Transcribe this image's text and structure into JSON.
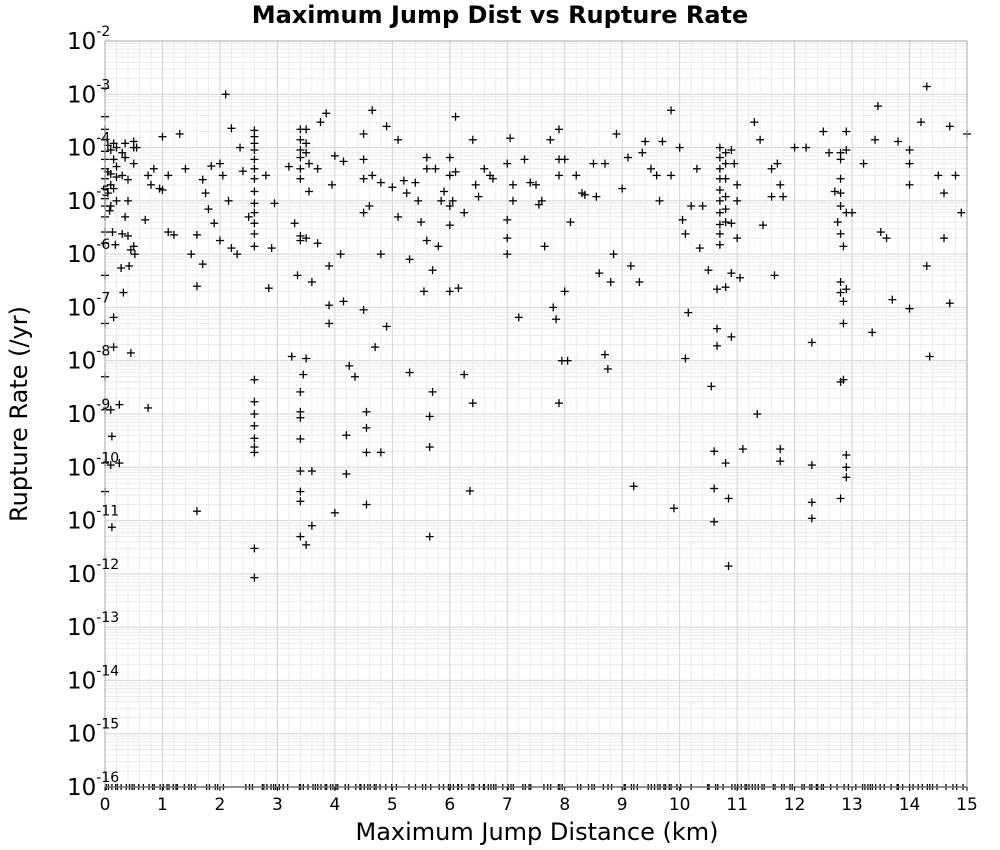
{
  "chart_data": {
    "type": "scatter",
    "title": "Maximum Jump Dist vs Rupture Rate",
    "xlabel": "Maximum Jump Distance (km)",
    "ylabel": "Rupture Rate (/yr)",
    "xlim": [
      0,
      15
    ],
    "ylim": [
      1e-16,
      0.01
    ],
    "yscale": "log",
    "grid": true,
    "legend": "none",
    "marker": "plus",
    "marker_color": "#000000",
    "x_ticks": [
      "0",
      "1",
      "2",
      "3",
      "4",
      "5",
      "6",
      "7",
      "8",
      "9",
      "10",
      "11",
      "12",
      "13",
      "14",
      "15"
    ],
    "y_ticks": [
      {
        "base": "10",
        "exp": "-2"
      },
      {
        "base": "10",
        "exp": "-3"
      },
      {
        "base": "10",
        "exp": "-4"
      },
      {
        "base": "10",
        "exp": "-5"
      },
      {
        "base": "10",
        "exp": "-6"
      },
      {
        "base": "10",
        "exp": "-7"
      },
      {
        "base": "10",
        "exp": "-8"
      },
      {
        "base": "10",
        "exp": "-9"
      },
      {
        "base": "10",
        "exp": "-10"
      },
      {
        "base": "10",
        "exp": "-11"
      },
      {
        "base": "10",
        "exp": "-12"
      },
      {
        "base": "10",
        "exp": "-13"
      },
      {
        "base": "10",
        "exp": "-14"
      },
      {
        "base": "10",
        "exp": "-15"
      },
      {
        "base": "10",
        "exp": "-16"
      }
    ],
    "points": [
      [
        0.0,
        0.0013
      ],
      [
        0.0,
        0.00038
      ],
      [
        0.0,
        0.00022
      ],
      [
        0.0,
        0.00014
      ],
      [
        0.0,
        8.5e-05
      ],
      [
        0.0,
        6e-05
      ],
      [
        0.0,
        4e-05
      ],
      [
        0.0,
        2.6e-05
      ],
      [
        0.0,
        1.7e-05
      ],
      [
        0.0,
        1.1e-05
      ],
      [
        0.0,
        8e-06
      ],
      [
        0.0,
        5e-06
      ],
      [
        0.0,
        2.6e-06
      ],
      [
        0.0,
        1.6e-06
      ],
      [
        0.0,
        4e-07
      ],
      [
        0.0,
        5e-08
      ],
      [
        0.0,
        5e-09
      ],
      [
        0.0,
        1.2e-09
      ],
      [
        0.0,
        1.2e-10
      ],
      [
        0.0,
        3.5e-11
      ],
      [
        0.05,
        0.00011
      ],
      [
        0.05,
        3.5e-05
      ],
      [
        0.05,
        1.4e-05
      ],
      [
        0.08,
        6.5e-06
      ],
      [
        0.1,
        9e-05
      ],
      [
        0.1,
        3.2e-05
      ],
      [
        0.1,
        2e-05
      ],
      [
        0.1,
        8e-06
      ],
      [
        0.1,
        1.2e-09
      ],
      [
        0.1,
        1.1e-10
      ],
      [
        0.12,
        3.8e-10
      ],
      [
        0.12,
        7.5e-12
      ],
      [
        0.13,
        2.6e-06
      ],
      [
        0.15,
        0.00012
      ],
      [
        0.15,
        6e-05
      ],
      [
        0.15,
        1.7e-05
      ],
      [
        0.15,
        6.5e-08
      ],
      [
        0.15,
        1.8e-08
      ],
      [
        0.18,
        1.5e-06
      ],
      [
        0.2,
        0.0001
      ],
      [
        0.2,
        4.4e-05
      ],
      [
        0.2,
        2.8e-05
      ],
      [
        0.2,
        1e-05
      ],
      [
        0.25,
        1.2e-10
      ],
      [
        0.25,
        1.5e-09
      ],
      [
        0.28,
        5.5e-07
      ],
      [
        0.3,
        2.4e-06
      ],
      [
        0.3,
        8e-05
      ],
      [
        0.3,
        3e-05
      ],
      [
        0.32,
        1.9e-07
      ],
      [
        0.35,
        0.00012
      ],
      [
        0.35,
        6.5e-05
      ],
      [
        0.35,
        5e-06
      ],
      [
        0.4,
        2.5e-05
      ],
      [
        0.4,
        1e-05
      ],
      [
        0.4,
        2.2e-06
      ],
      [
        0.42,
        6e-07
      ],
      [
        0.45,
        1.2e-06
      ],
      [
        0.45,
        1.4e-08
      ],
      [
        0.5,
        0.00013
      ],
      [
        0.5,
        0.0001
      ],
      [
        0.5,
        5e-05
      ],
      [
        0.5,
        1.4e-06
      ],
      [
        0.52,
        1e-06
      ],
      [
        0.55,
        0.0001
      ],
      [
        0.7,
        4.4e-06
      ],
      [
        0.75,
        1.3e-09
      ],
      [
        0.75,
        3e-05
      ],
      [
        0.8,
        2e-05
      ],
      [
        0.85,
        4e-05
      ],
      [
        0.95,
        1.7e-05
      ],
      [
        1.0,
        1.6e-05
      ],
      [
        1.0,
        0.00016
      ],
      [
        1.1,
        3e-05
      ],
      [
        1.1,
        2.6e-06
      ],
      [
        1.2,
        2.3e-06
      ],
      [
        1.3,
        0.00018
      ],
      [
        1.4,
        4e-05
      ],
      [
        1.5,
        1e-06
      ],
      [
        1.6,
        2.5e-07
      ],
      [
        1.6,
        2.3e-06
      ],
      [
        1.6,
        1.5e-11
      ],
      [
        1.7,
        6.5e-07
      ],
      [
        1.7,
        2.5e-05
      ],
      [
        1.75,
        1.4e-05
      ],
      [
        1.8,
        7e-06
      ],
      [
        1.85,
        4.5e-05
      ],
      [
        1.9,
        3.8e-06
      ],
      [
        2.0,
        5e-05
      ],
      [
        2.0,
        1.8e-06
      ],
      [
        2.05,
        3e-05
      ],
      [
        2.1,
        0.001
      ],
      [
        2.15,
        1e-05
      ],
      [
        2.2,
        0.00023
      ],
      [
        2.2,
        1.3e-06
      ],
      [
        2.3,
        1e-06
      ],
      [
        2.35,
        0.0001
      ],
      [
        2.4,
        3.6e-05
      ],
      [
        2.5,
        5e-06
      ],
      [
        2.6,
        0.00021
      ],
      [
        2.6,
        0.00016
      ],
      [
        2.6,
        0.00012
      ],
      [
        2.6,
        9e-05
      ],
      [
        2.6,
        6e-05
      ],
      [
        2.6,
        4e-05
      ],
      [
        2.6,
        2.6e-05
      ],
      [
        2.6,
        1.5e-05
      ],
      [
        2.6,
        9e-06
      ],
      [
        2.6,
        6e-06
      ],
      [
        2.6,
        3.8e-06
      ],
      [
        2.6,
        2.4e-06
      ],
      [
        2.6,
        1.4e-06
      ],
      [
        2.6,
        4.4e-09
      ],
      [
        2.6,
        1.7e-09
      ],
      [
        2.6,
        1e-09
      ],
      [
        2.6,
        6e-10
      ],
      [
        2.6,
        3.5e-10
      ],
      [
        2.6,
        2.4e-10
      ],
      [
        2.6,
        1.9e-10
      ],
      [
        2.6,
        3e-12
      ],
      [
        2.6,
        8.5e-13
      ],
      [
        2.8,
        3e-05
      ],
      [
        2.85,
        2.3e-07
      ],
      [
        2.9,
        1.3e-06
      ],
      [
        2.95,
        9e-06
      ],
      [
        3.2,
        4.4e-05
      ],
      [
        3.25,
        1.2e-08
      ],
      [
        3.3,
        3.8e-06
      ],
      [
        3.35,
        4e-07
      ],
      [
        3.4,
        0.00022
      ],
      [
        3.4,
        0.00014
      ],
      [
        3.4,
        9e-05
      ],
      [
        3.4,
        6.5e-05
      ],
      [
        3.4,
        4e-05
      ],
      [
        3.4,
        2.6e-05
      ],
      [
        3.4,
        2.2e-06
      ],
      [
        3.4,
        1.8e-06
      ],
      [
        3.4,
        2.6e-09
      ],
      [
        3.4,
        1.1e-09
      ],
      [
        3.4,
        8.5e-10
      ],
      [
        3.4,
        3.4e-10
      ],
      [
        3.4,
        8.5e-11
      ],
      [
        3.4,
        3.5e-11
      ],
      [
        3.4,
        2.3e-11
      ],
      [
        3.4,
        5e-12
      ],
      [
        3.45,
        5.5e-09
      ],
      [
        3.5,
        0.00022
      ],
      [
        3.5,
        0.00012
      ],
      [
        3.5,
        8e-05
      ],
      [
        3.5,
        2e-06
      ],
      [
        3.5,
        1.1e-08
      ],
      [
        3.5,
        3.5e-12
      ],
      [
        3.55,
        5e-05
      ],
      [
        3.55,
        1.5e-05
      ],
      [
        3.6,
        8e-12
      ],
      [
        3.6,
        3e-07
      ],
      [
        3.6,
        8.5e-11
      ],
      [
        3.7,
        4e-05
      ],
      [
        3.7,
        1.6e-06
      ],
      [
        3.75,
        0.0003
      ],
      [
        3.85,
        0.00044
      ],
      [
        3.9,
        6e-07
      ],
      [
        3.9,
        1.1e-07
      ],
      [
        3.9,
        5e-08
      ],
      [
        3.95,
        2e-05
      ],
      [
        4.0,
        7e-05
      ],
      [
        4.0,
        1.4e-11
      ],
      [
        4.1,
        1e-06
      ],
      [
        4.15,
        5.5e-05
      ],
      [
        4.15,
        1.3e-07
      ],
      [
        4.2,
        4e-10
      ],
      [
        4.2,
        7.5e-11
      ],
      [
        4.25,
        8e-09
      ],
      [
        4.35,
        5e-09
      ],
      [
        4.5,
        0.00018
      ],
      [
        4.5,
        6e-05
      ],
      [
        4.5,
        2.6e-05
      ],
      [
        4.5,
        6e-06
      ],
      [
        4.5,
        9e-08
      ],
      [
        4.55,
        1.1e-09
      ],
      [
        4.55,
        5.5e-10
      ],
      [
        4.55,
        1.9e-10
      ],
      [
        4.55,
        2e-11
      ],
      [
        4.6,
        8e-06
      ],
      [
        4.65,
        0.0005
      ],
      [
        4.65,
        3e-05
      ],
      [
        4.7,
        1.8e-08
      ],
      [
        4.8,
        2.2e-05
      ],
      [
        4.8,
        1e-06
      ],
      [
        4.8,
        1.9e-10
      ],
      [
        4.9,
        0.00025
      ],
      [
        4.9,
        4.4e-08
      ],
      [
        5.0,
        1.8e-05
      ],
      [
        5.1,
        0.00014
      ],
      [
        5.1,
        5e-06
      ],
      [
        5.2,
        2.4e-05
      ],
      [
        5.25,
        1.4e-05
      ],
      [
        5.3,
        8e-07
      ],
      [
        5.3,
        6e-09
      ],
      [
        5.4,
        2.2e-05
      ],
      [
        5.45,
        1e-05
      ],
      [
        5.5,
        4e-06
      ],
      [
        5.55,
        2e-07
      ],
      [
        5.6,
        6.5e-05
      ],
      [
        5.6,
        4e-05
      ],
      [
        5.6,
        1.8e-06
      ],
      [
        5.65,
        9e-10
      ],
      [
        5.65,
        2.4e-10
      ],
      [
        5.65,
        5e-12
      ],
      [
        5.7,
        5e-07
      ],
      [
        5.7,
        2.6e-09
      ],
      [
        5.75,
        4e-05
      ],
      [
        5.8,
        1.4e-06
      ],
      [
        5.85,
        1e-05
      ],
      [
        5.9,
        1.5e-05
      ],
      [
        6.0,
        6.5e-05
      ],
      [
        6.0,
        3e-05
      ],
      [
        6.0,
        8e-06
      ],
      [
        6.0,
        3.5e-06
      ],
      [
        6.0,
        2e-07
      ],
      [
        6.05,
        1e-05
      ],
      [
        6.1,
        0.00038
      ],
      [
        6.1,
        3.5e-05
      ],
      [
        6.15,
        2.3e-07
      ],
      [
        6.25,
        6e-06
      ],
      [
        6.25,
        5.5e-09
      ],
      [
        6.35,
        3.6e-11
      ],
      [
        6.4,
        0.00014
      ],
      [
        6.4,
        1.6e-09
      ],
      [
        6.45,
        2e-05
      ],
      [
        6.5,
        1.2e-05
      ],
      [
        6.6,
        4e-05
      ],
      [
        6.7,
        3e-05
      ],
      [
        6.75,
        2.6e-05
      ],
      [
        7.0,
        5e-05
      ],
      [
        7.0,
        4.4e-06
      ],
      [
        7.0,
        2e-06
      ],
      [
        7.0,
        1e-06
      ],
      [
        7.05,
        0.00015
      ],
      [
        7.1,
        2e-05
      ],
      [
        7.1,
        1e-05
      ],
      [
        7.2,
        6.5e-08
      ],
      [
        7.3,
        6e-05
      ],
      [
        7.4,
        2.2e-05
      ],
      [
        7.5,
        2e-05
      ],
      [
        7.55,
        8.5e-06
      ],
      [
        7.6,
        1e-05
      ],
      [
        7.65,
        1.4e-06
      ],
      [
        7.75,
        0.00014
      ],
      [
        7.8,
        1e-07
      ],
      [
        7.85,
        6e-08
      ],
      [
        7.9,
        0.00022
      ],
      [
        7.9,
        6e-05
      ],
      [
        7.9,
        3e-05
      ],
      [
        7.9,
        1.6e-09
      ],
      [
        7.95,
        1e-08
      ],
      [
        8.0,
        6e-05
      ],
      [
        8.0,
        2e-07
      ],
      [
        8.05,
        1e-08
      ],
      [
        8.1,
        4e-06
      ],
      [
        8.2,
        3e-05
      ],
      [
        8.3,
        1.4e-05
      ],
      [
        8.35,
        1.3e-05
      ],
      [
        8.5,
        5e-05
      ],
      [
        8.55,
        1.2e-05
      ],
      [
        8.6,
        4.4e-07
      ],
      [
        8.7,
        5e-05
      ],
      [
        8.7,
        1.3e-08
      ],
      [
        8.75,
        7e-09
      ],
      [
        8.8,
        3e-07
      ],
      [
        8.85,
        1e-06
      ],
      [
        8.9,
        0.00018
      ],
      [
        9.0,
        1.7e-05
      ],
      [
        9.1,
        6.5e-05
      ],
      [
        9.15,
        6e-07
      ],
      [
        9.2,
        4.4e-11
      ],
      [
        9.3,
        3e-07
      ],
      [
        9.35,
        8e-05
      ],
      [
        9.4,
        0.00013
      ],
      [
        9.5,
        4e-05
      ],
      [
        9.6,
        3e-05
      ],
      [
        9.65,
        1e-05
      ],
      [
        9.7,
        0.00013
      ],
      [
        9.85,
        0.0005
      ],
      [
        9.85,
        3e-05
      ],
      [
        9.9,
        1.7e-11
      ],
      [
        10.0,
        0.0001
      ],
      [
        10.05,
        4.4e-06
      ],
      [
        10.1,
        2.4e-06
      ],
      [
        10.1,
        1.1e-08
      ],
      [
        10.15,
        8e-08
      ],
      [
        10.2,
        8e-06
      ],
      [
        10.3,
        4e-05
      ],
      [
        10.35,
        1.3e-06
      ],
      [
        10.4,
        8e-06
      ],
      [
        10.5,
        5e-07
      ],
      [
        10.55,
        3.3e-09
      ],
      [
        10.6,
        2e-10
      ],
      [
        10.6,
        4e-11
      ],
      [
        10.6,
        9.5e-12
      ],
      [
        10.65,
        2.2e-07
      ],
      [
        10.65,
        4e-08
      ],
      [
        10.65,
        1.9e-08
      ],
      [
        10.7,
        0.0001
      ],
      [
        10.7,
        6.5e-05
      ],
      [
        10.7,
        4e-05
      ],
      [
        10.7,
        2.6e-05
      ],
      [
        10.7,
        1.6e-05
      ],
      [
        10.7,
        1e-05
      ],
      [
        10.7,
        6e-06
      ],
      [
        10.7,
        3.6e-06
      ],
      [
        10.7,
        2.4e-06
      ],
      [
        10.7,
        1.5e-06
      ],
      [
        10.8,
        8e-05
      ],
      [
        10.8,
        5e-05
      ],
      [
        10.8,
        2.6e-05
      ],
      [
        10.8,
        1.2e-05
      ],
      [
        10.8,
        7e-06
      ],
      [
        10.8,
        4e-06
      ],
      [
        10.8,
        2.4e-07
      ],
      [
        10.8,
        1.2e-10
      ],
      [
        10.85,
        2.6e-11
      ],
      [
        10.85,
        1.4e-12
      ],
      [
        10.9,
        9e-05
      ],
      [
        10.9,
        3.8e-06
      ],
      [
        10.9,
        4.4e-07
      ],
      [
        10.9,
        2.8e-08
      ],
      [
        10.95,
        5e-05
      ],
      [
        11.0,
        2e-05
      ],
      [
        11.0,
        1e-05
      ],
      [
        11.0,
        2e-06
      ],
      [
        11.05,
        3.6e-07
      ],
      [
        11.1,
        2.2e-10
      ],
      [
        11.3,
        0.0003
      ],
      [
        11.35,
        1e-09
      ],
      [
        11.4,
        0.00014
      ],
      [
        11.45,
        3.5e-06
      ],
      [
        11.6,
        1.2e-05
      ],
      [
        11.6,
        4e-05
      ],
      [
        11.65,
        4e-07
      ],
      [
        11.7,
        5e-05
      ],
      [
        11.75,
        2e-05
      ],
      [
        11.8,
        1.2e-05
      ],
      [
        11.75,
        2.2e-10
      ],
      [
        11.75,
        1.3e-10
      ],
      [
        12.0,
        0.0001
      ],
      [
        12.2,
        0.0001
      ],
      [
        12.3,
        2.2e-08
      ],
      [
        12.3,
        1.1e-10
      ],
      [
        12.3,
        2.2e-11
      ],
      [
        12.3,
        1.1e-11
      ],
      [
        12.5,
        0.0002
      ],
      [
        12.6,
        8e-05
      ],
      [
        12.7,
        1.5e-05
      ],
      [
        12.75,
        4e-06
      ],
      [
        12.8,
        8e-05
      ],
      [
        12.8,
        6e-05
      ],
      [
        12.8,
        2.6e-05
      ],
      [
        12.8,
        1.4e-05
      ],
      [
        12.8,
        8e-06
      ],
      [
        12.8,
        2.4e-06
      ],
      [
        12.8,
        3e-07
      ],
      [
        12.8,
        1.9e-07
      ],
      [
        12.8,
        4e-09
      ],
      [
        12.8,
        2.6e-11
      ],
      [
        12.85,
        1.4e-06
      ],
      [
        12.85,
        1.3e-07
      ],
      [
        12.85,
        5e-08
      ],
      [
        12.85,
        4.4e-09
      ],
      [
        12.9,
        0.0002
      ],
      [
        12.9,
        9e-05
      ],
      [
        12.9,
        6e-06
      ],
      [
        12.9,
        2.2e-07
      ],
      [
        12.9,
        1.7e-10
      ],
      [
        12.9,
        1e-10
      ],
      [
        12.9,
        6.5e-11
      ],
      [
        13.0,
        6e-06
      ],
      [
        13.2,
        5e-05
      ],
      [
        13.35,
        3.4e-08
      ],
      [
        13.4,
        0.00014
      ],
      [
        13.45,
        0.0006
      ],
      [
        13.5,
        2.6e-06
      ],
      [
        13.6,
        2e-06
      ],
      [
        13.7,
        1.4e-07
      ],
      [
        13.8,
        0.00013
      ],
      [
        14.0,
        9e-05
      ],
      [
        14.0,
        5e-05
      ],
      [
        14.0,
        2e-05
      ],
      [
        14.0,
        9.5e-08
      ],
      [
        14.2,
        0.0003
      ],
      [
        14.3,
        0.0014
      ],
      [
        14.3,
        6e-07
      ],
      [
        14.35,
        1.2e-08
      ],
      [
        14.5,
        3e-05
      ],
      [
        14.6,
        1.4e-05
      ],
      [
        14.6,
        2e-06
      ],
      [
        14.7,
        1.2e-07
      ],
      [
        14.7,
        0.00025
      ],
      [
        14.8,
        3e-05
      ],
      [
        14.9,
        6e-06
      ],
      [
        15.0,
        0.00018
      ]
    ],
    "floor_value": 1e-16
  }
}
